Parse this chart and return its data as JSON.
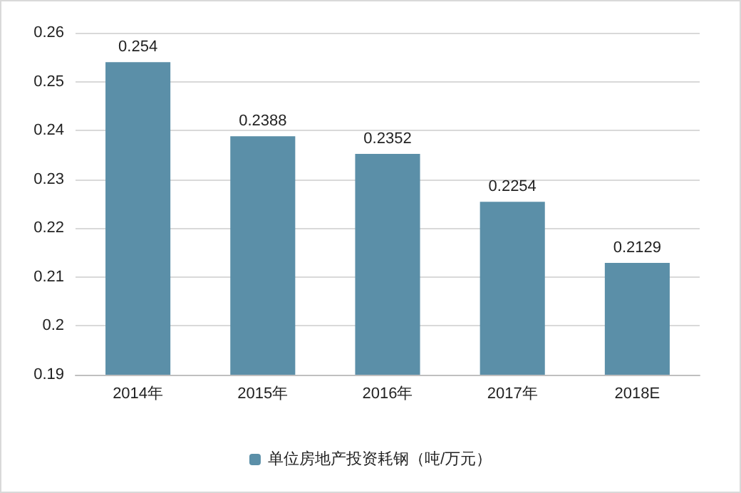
{
  "chart_data": {
    "type": "bar",
    "categories": [
      "2014年",
      "2015年",
      "2016年",
      "2017年",
      "2018E"
    ],
    "series": [
      {
        "name": "单位房地产投资耗钢（吨/万元）",
        "color": "#5b8fa8",
        "values": [
          0.254,
          0.2388,
          0.2352,
          0.2254,
          0.2129
        ]
      }
    ],
    "ylim": [
      0.19,
      0.26
    ],
    "yticks": [
      0.19,
      0.2,
      0.21,
      0.22,
      0.23,
      0.24,
      0.25,
      0.26
    ],
    "grid": "y",
    "legend": "bottom",
    "data_labels": true
  }
}
